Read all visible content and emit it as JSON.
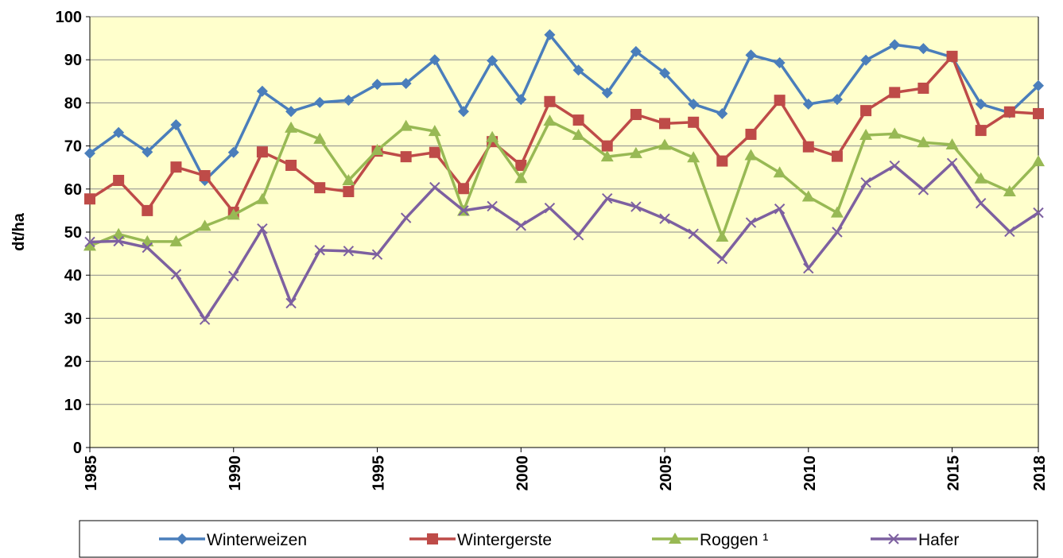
{
  "chart_data": {
    "type": "line",
    "y_label": "dt/ha",
    "x": [
      1985,
      1986,
      1987,
      1988,
      1989,
      1990,
      1991,
      1992,
      1993,
      1994,
      1995,
      1996,
      1997,
      1998,
      1999,
      2000,
      2001,
      2002,
      2003,
      2004,
      2005,
      2006,
      2007,
      2008,
      2009,
      2010,
      2011,
      2012,
      2013,
      2014,
      2015,
      2016,
      2017,
      2018
    ],
    "xlim": [
      1985,
      2018
    ],
    "xticks": [
      1985,
      1990,
      1995,
      2000,
      2005,
      2010,
      2015,
      2018
    ],
    "ylim": [
      0,
      100
    ],
    "yticks": [
      0,
      10,
      20,
      30,
      40,
      50,
      60,
      70,
      80,
      90,
      100
    ],
    "grid": true,
    "legend": "bottom",
    "series": [
      {
        "name": "Winterweizen",
        "color": "#4a7ebb",
        "marker": "diamond",
        "values": [
          68.3,
          73.1,
          68.6,
          74.9,
          62.0,
          68.5,
          82.7,
          78.0,
          80.1,
          80.6,
          84.3,
          84.5,
          90.0,
          78.0,
          89.8,
          80.8,
          95.8,
          87.6,
          82.3,
          91.9,
          86.9,
          79.7,
          77.5,
          91.1,
          89.3,
          79.7,
          80.8,
          89.9,
          93.5,
          92.6,
          90.6,
          79.7,
          77.7,
          84.0
        ]
      },
      {
        "name": "Wintergerste",
        "color": "#be4b48",
        "marker": "square",
        "values": [
          57.7,
          62.0,
          55.0,
          65.1,
          63.1,
          54.6,
          68.6,
          65.5,
          60.3,
          59.4,
          68.8,
          67.5,
          68.5,
          60.1,
          71.0,
          65.5,
          80.3,
          76.0,
          70.0,
          77.3,
          75.2,
          75.5,
          66.5,
          72.7,
          80.6,
          69.8,
          67.6,
          78.2,
          82.4,
          83.4,
          90.8,
          73.6,
          77.9,
          77.5
        ]
      },
      {
        "name": "Roggen ¹",
        "color": "#98b954",
        "marker": "triangle",
        "values": [
          46.8,
          49.5,
          47.8,
          47.8,
          51.4,
          54.0,
          57.6,
          74.2,
          71.6,
          62.0,
          69.0,
          74.6,
          73.4,
          54.9,
          72.0,
          62.5,
          75.8,
          72.5,
          67.5,
          68.3,
          70.2,
          67.3,
          48.9,
          67.8,
          63.8,
          58.2,
          54.5,
          72.5,
          72.8,
          70.8,
          70.3,
          62.4,
          59.4,
          66.4
        ]
      },
      {
        "name": "Hafer",
        "color": "#7d60a0",
        "marker": "x",
        "values": [
          47.7,
          47.9,
          46.4,
          40.2,
          29.7,
          39.8,
          50.8,
          33.5,
          45.8,
          45.6,
          44.8,
          53.3,
          60.4,
          55.0,
          56.0,
          51.5,
          55.6,
          49.3,
          57.8,
          55.9,
          53.1,
          49.6,
          43.8,
          52.2,
          55.4,
          41.6,
          50.0,
          61.5,
          65.4,
          59.8,
          66.0,
          56.7,
          50.1,
          54.5
        ]
      }
    ]
  }
}
